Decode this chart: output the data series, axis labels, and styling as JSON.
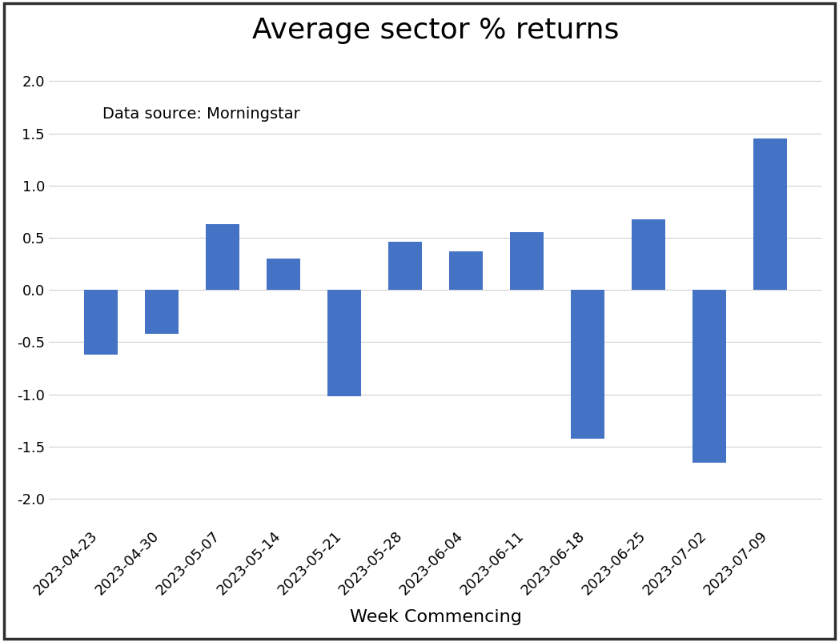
{
  "title": "Average sector % returns",
  "xlabel": "Week Commencing",
  "ylabel": "",
  "annotation": "Data source: Morningstar",
  "categories": [
    "2023-04-23",
    "2023-04-30",
    "2023-05-07",
    "2023-05-14",
    "2023-05-21",
    "2023-05-28",
    "2023-06-04",
    "2023-06-11",
    "2023-06-18",
    "2023-06-25",
    "2023-07-02",
    "2023-07-09"
  ],
  "values": [
    -0.62,
    -0.42,
    0.63,
    0.3,
    -1.02,
    0.46,
    0.37,
    0.55,
    -1.42,
    0.68,
    -1.65,
    1.45
  ],
  "bar_color": "#4472c4",
  "ylim": [
    -2.25,
    2.25
  ],
  "yticks": [
    -2.0,
    -1.5,
    -1.0,
    -0.5,
    0.0,
    0.5,
    1.0,
    1.5,
    2.0
  ],
  "title_fontsize": 26,
  "xlabel_fontsize": 16,
  "annotation_fontsize": 14,
  "tick_fontsize": 13,
  "background_color": "#ffffff",
  "grid_color": "#d0d0d0",
  "border_color": "#2f2f2f"
}
